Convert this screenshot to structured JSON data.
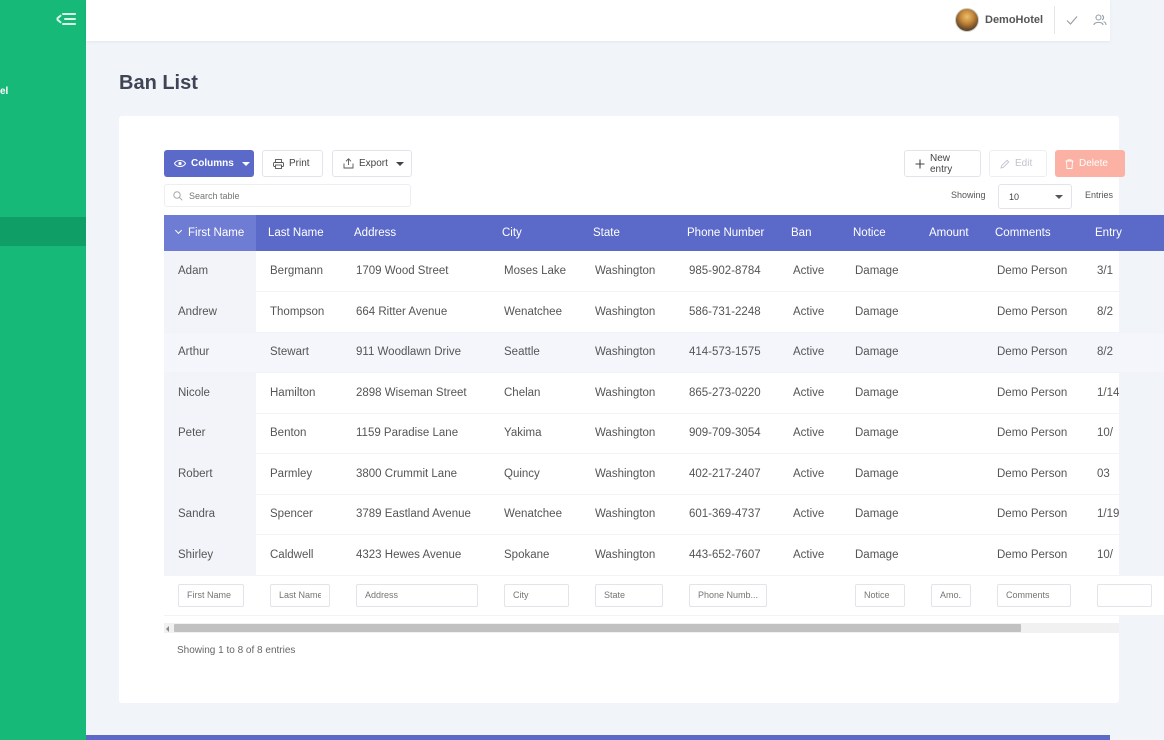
{
  "sidebar": {
    "brand_fragment": "el"
  },
  "topbar": {
    "hotel_name": "DemoHotel"
  },
  "page": {
    "title": "Ban List"
  },
  "toolbar": {
    "columns_label": "Columns",
    "print_label": "Print",
    "export_label": "Export",
    "new_entry_label": "New entry",
    "edit_label": "Edit",
    "delete_label": "Delete"
  },
  "search": {
    "placeholder": "Search table"
  },
  "paging": {
    "showing_label": "Showing",
    "entries_value": "10",
    "entries_label": "Entries"
  },
  "table": {
    "headers": [
      "First Name",
      "Last Name",
      "Address",
      "City",
      "State",
      "Phone Number",
      "Ban",
      "Notice",
      "Amount",
      "Comments",
      "Entry"
    ],
    "rows": [
      [
        "Adam",
        "Bergmann",
        "1709 Wood Street",
        "Moses Lake",
        "Washington",
        "985-902-8784",
        "Active",
        "Damage",
        "",
        "Demo Person",
        "3/1"
      ],
      [
        "Andrew",
        "Thompson",
        "664 Ritter Avenue",
        "Wenatchee",
        "Washington",
        "586-731-2248",
        "Active",
        "Damage",
        "",
        "Demo Person",
        "8/2"
      ],
      [
        "Arthur",
        "Stewart",
        "911 Woodlawn Drive",
        "Seattle",
        "Washington",
        "414-573-1575",
        "Active",
        "Damage",
        "",
        "Demo Person",
        "8/2"
      ],
      [
        "Nicole",
        "Hamilton",
        "2898 Wiseman Street",
        "Chelan",
        "Washington",
        "865-273-0220",
        "Active",
        "Damage",
        "",
        "Demo Person",
        "1/14"
      ],
      [
        "Peter",
        "Benton",
        "1159 Paradise Lane",
        "Yakima",
        "Washington",
        "909-709-3054",
        "Active",
        "Damage",
        "",
        "Demo Person",
        "10/"
      ],
      [
        "Robert",
        "Parmley",
        "3800 Crummit Lane",
        "Quincy",
        "Washington",
        "402-217-2407",
        "Active",
        "Damage",
        "",
        "Demo Person",
        "03"
      ],
      [
        "Sandra",
        "Spencer",
        "3789 Eastland Avenue",
        "Wenatchee",
        "Washington",
        "601-369-4737",
        "Active",
        "Damage",
        "",
        "Demo Person",
        "1/19"
      ],
      [
        "Shirley",
        "Caldwell",
        "4323 Hewes Avenue",
        "Spokane",
        "Washington",
        "443-652-7607",
        "Active",
        "Damage",
        "",
        "Demo Person",
        "10/"
      ]
    ],
    "filters": [
      "First Name",
      "Last Name",
      "Address",
      "City",
      "State",
      "Phone Numb...",
      "",
      "Notice",
      "Amo...",
      "Comments",
      ""
    ]
  },
  "footer": {
    "showing_info": "Showing 1 to 8 of 8 entries"
  },
  "colors": {
    "sidebar": "#17b978",
    "accent": "#5b6ac9",
    "delete": "#fbb1a3"
  }
}
